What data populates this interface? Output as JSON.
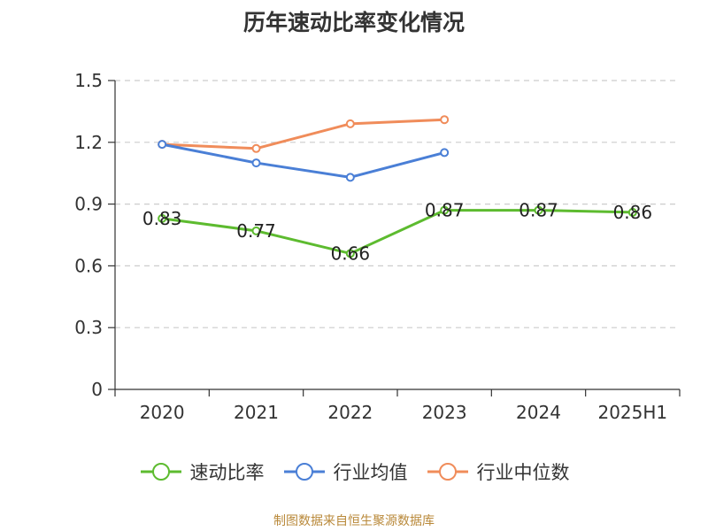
{
  "chart_data": {
    "type": "line",
    "title": "历年速动比率变化情况",
    "categories": [
      "2020",
      "2021",
      "2022",
      "2023",
      "2024",
      "2025H1"
    ],
    "ylim": [
      0,
      1.5
    ],
    "yticks": [
      "0",
      "0.3",
      "0.6",
      "0.9",
      "1.2",
      "1.5"
    ],
    "grid": "horizontal-dashed",
    "legend_position": "bottom",
    "series": [
      {
        "name": "速动比率",
        "color": "#5dbb2f",
        "values": [
          0.83,
          0.77,
          0.66,
          0.87,
          0.87,
          0.86
        ],
        "labels": [
          "0.83",
          "0.77",
          "0.66",
          "0.87",
          "0.87",
          "0.86"
        ]
      },
      {
        "name": "行业均值",
        "color": "#4a7fd6",
        "values": [
          1.19,
          1.1,
          1.03,
          1.15,
          null,
          null
        ]
      },
      {
        "name": "行业中位数",
        "color": "#f08c5a",
        "values": [
          1.19,
          1.17,
          1.29,
          1.31,
          null,
          null
        ]
      }
    ]
  },
  "source": "制图数据来自恒生聚源数据库"
}
